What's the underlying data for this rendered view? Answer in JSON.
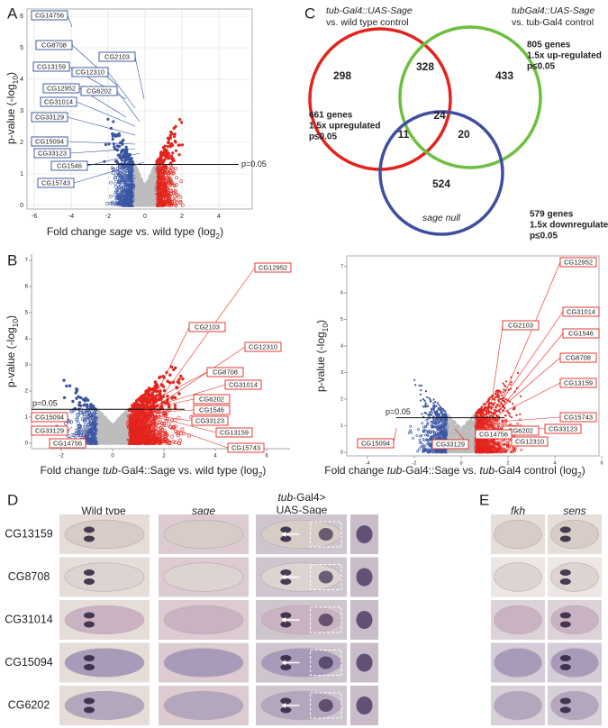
{
  "panelA": {
    "label": "A",
    "ylabel": [
      {
        "text": "p-value (-log"
      },
      {
        "text": "10",
        "style": "sub"
      },
      {
        "text": ")"
      }
    ],
    "xlabel": [
      {
        "text": "Fold change "
      },
      {
        "text": "sage",
        "style": "italic"
      },
      {
        "text": " vs. wild type (log"
      },
      {
        "text": "2",
        "style": "sub"
      },
      {
        "text": ")"
      }
    ],
    "xticks": [
      -6,
      -4,
      -2,
      0,
      2,
      4
    ],
    "yticks": [
      0,
      1,
      2,
      3,
      4,
      5,
      6
    ],
    "threshold": "p=0.05",
    "genes": [
      "CG14756",
      "CG8708",
      "CG13159",
      "CG12310",
      "CG2103",
      "CG12952",
      "CG6202",
      "CG31014",
      "CG33129",
      "CG15094",
      "CG33123",
      "CG1546",
      "CG15743"
    ]
  },
  "panelB": {
    "label": "B",
    "left": {
      "ylabel": [
        {
          "text": "p-value (-log"
        },
        {
          "text": "10",
          "style": "sub"
        },
        {
          "text": ")"
        }
      ],
      "xlabel": [
        {
          "text": "Fold change "
        },
        {
          "text": "tub",
          "style": "italic"
        },
        {
          "text": "-Gal4::Sage vs. wild type (log"
        },
        {
          "text": "2",
          "style": "sub"
        },
        {
          "text": ")"
        }
      ],
      "xticks": [
        -2,
        0,
        2,
        4,
        6
      ],
      "yticks": [
        0,
        1,
        2,
        3,
        4,
        5,
        6,
        7
      ],
      "threshold": "p=0.05",
      "genes": [
        "CG12952",
        "CG2103",
        "CG12310",
        "CG8708",
        "CG31014",
        "CG6202",
        "CG1546",
        "CG33123",
        "CG13159",
        "CG15743",
        "CG15094",
        "CG33129",
        "CG14756"
      ]
    },
    "right": {
      "ylabel": [
        {
          "text": "p-value (-log"
        },
        {
          "text": "10",
          "style": "sub"
        },
        {
          "text": ")"
        }
      ],
      "xlabel": [
        {
          "text": "Fold change "
        },
        {
          "text": "tub",
          "style": "italic"
        },
        {
          "text": "-Gal4::Sage vs. "
        },
        {
          "text": "tub",
          "style": "italic"
        },
        {
          "text": "-Gal4 control (log"
        },
        {
          "text": "2",
          "style": "sub"
        },
        {
          "text": ")"
        }
      ],
      "xticks": [
        -4,
        -2,
        0,
        2,
        4,
        6
      ],
      "yticks": [
        0,
        1,
        2,
        3,
        4,
        5,
        6,
        7
      ],
      "threshold": "p=0.05",
      "genes": [
        "CG12952",
        "CG31014",
        "CG2103",
        "CG1546",
        "CG8708",
        "CG13159",
        "CG15743",
        "CG33123",
        "CG6202",
        "CG12310",
        "CG14756",
        "CG33129",
        "CG15094"
      ]
    }
  },
  "panelC": {
    "label": "C",
    "red_title": [
      {
        "text": "tub-Gal4::UAS-Sage",
        "style": "italic"
      },
      {
        "text": "vs. wild type control"
      }
    ],
    "green_title": [
      {
        "text": "tubGal4::UAS-Sage",
        "style": "italic"
      },
      {
        "text": "vs. tub-Gal4 control"
      }
    ],
    "counts": {
      "red_only": 298,
      "red_green": 328,
      "green_only": 433,
      "red_blue": 11,
      "all": 24,
      "green_blue": 20,
      "blue_only": 524
    },
    "red_desc": [
      "661 genes",
      "1.5x upregulated",
      "p≤0.05"
    ],
    "green_desc": [
      "805 genes",
      "1.5x up-regulated",
      "p≤0.05"
    ],
    "blue_desc": [
      "579 genes",
      "1.5x downregulated",
      "p≤0.05"
    ],
    "blue_title": "sage null"
  },
  "panelD": {
    "label": "D",
    "columns": [
      "Wild type",
      "sage"
    ],
    "tub_header": [
      {
        "text": "tub",
        "style": "italic"
      },
      {
        "text": "-Gal4>"
      }
    ],
    "tub_header2": "UAS-Sage",
    "rows": [
      "CG13159",
      "CG8708",
      "CG31014",
      "CG15094",
      "CG6202"
    ]
  },
  "panelE": {
    "label": "E",
    "columns": [
      "fkh",
      "sens"
    ]
  }
}
